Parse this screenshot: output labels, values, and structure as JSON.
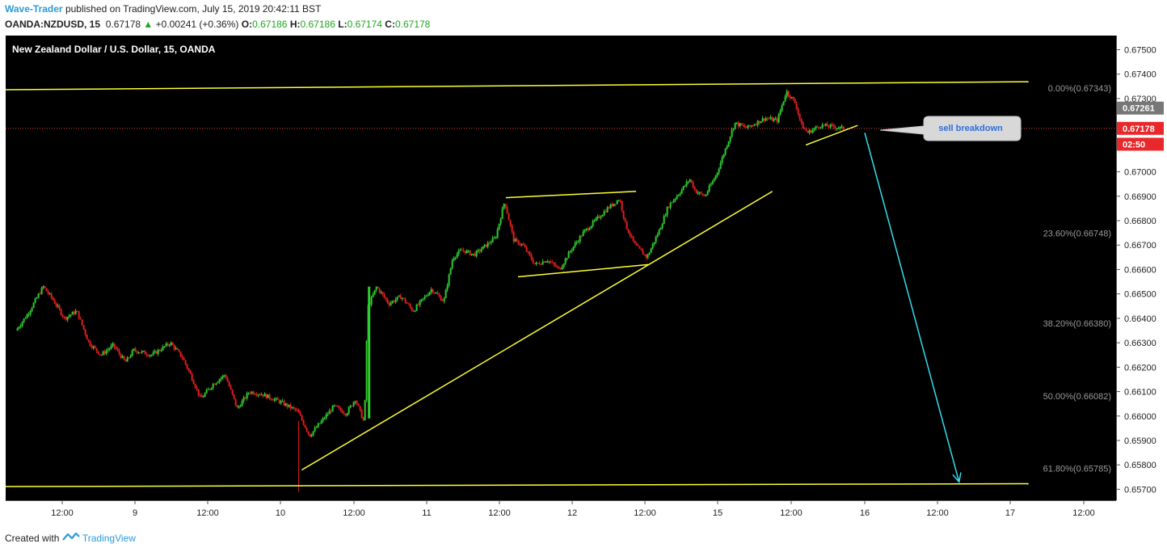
{
  "header": {
    "author": "Wave-Trader",
    "published_text": "published on TradingView.com, July 15, 2019 20:42:11 BST",
    "symbol": "OANDA:NZDUSD, 15",
    "last": "0.67178",
    "change_arrow": "▲",
    "change": "+0.00241 (+0.36%)",
    "open_label": "O:",
    "open": "0.67186",
    "high_label": "H:",
    "high": "0.67186",
    "low_label": "L:",
    "low": "0.67174",
    "close_label": "C:",
    "close": "0.67178"
  },
  "footer": {
    "created_with": "Created with",
    "brand": "TradingView"
  },
  "colors": {
    "up": "#2ecc2e",
    "down": "#e01e1e",
    "trendline": "#ffff33",
    "arrow": "#33ddee",
    "price_line": "#e84040"
  },
  "chart_data": {
    "type": "candlestick",
    "title": "New Zealand Dollar / U.S. Dollar, 15, OANDA",
    "ylim": [
      0.65655,
      0.67558
    ],
    "y_ticks": [
      "0.67500",
      "0.67400",
      "0.67300",
      "0.67000",
      "0.66900",
      "0.66800",
      "0.66700",
      "0.66600",
      "0.66500",
      "0.66400",
      "0.66300",
      "0.66200",
      "0.66100",
      "0.66000",
      "0.65900",
      "0.65800",
      "0.65700"
    ],
    "x_ticks": [
      "12:00",
      "9",
      "12:00",
      "10",
      "12:00",
      "11",
      "12:00",
      "12",
      "12:00",
      "15",
      "12:00",
      "16",
      "12:00",
      "17",
      "12:00"
    ],
    "price_labels": [
      {
        "text": "0.67261",
        "value": 0.67261,
        "style": "grey"
      },
      {
        "text": "0.67178",
        "value": 0.67178,
        "style": "red"
      },
      {
        "text": "02:50",
        "value": 0.67113,
        "style": "red"
      }
    ],
    "fib_levels": [
      {
        "label": "0.00%(0.67343)",
        "value": 0.67343
      },
      {
        "label": "23.60%(0.66748)",
        "value": 0.66748
      },
      {
        "label": "38.20%(0.66380)",
        "value": 0.6638
      },
      {
        "label": "50.00%(0.66082)",
        "value": 0.66082
      },
      {
        "label": "61.80%(0.65785)",
        "value": 0.65785
      }
    ],
    "price_path": [
      [
        "8 04:00",
        0.6635
      ],
      [
        "8 06:00",
        0.6642
      ],
      [
        "8 08:30",
        0.6653
      ],
      [
        "8 10:00",
        0.6648
      ],
      [
        "8 12:00",
        0.664
      ],
      [
        "8 14:00",
        0.6643
      ],
      [
        "8 16:00",
        0.663
      ],
      [
        "8 18:00",
        0.6625
      ],
      [
        "8 20:00",
        0.6629
      ],
      [
        "8 22:00",
        0.6622
      ],
      [
        "9 00:00",
        0.6627
      ],
      [
        "9 03:00",
        0.6625
      ],
      [
        "9 06:00",
        0.663
      ],
      [
        "9 08:00",
        0.6624
      ],
      [
        "9 09:30",
        0.6616
      ],
      [
        "9 11:00",
        0.6607
      ],
      [
        "9 13:00",
        0.6613
      ],
      [
        "9 15:00",
        0.6617
      ],
      [
        "9 17:00",
        0.6603
      ],
      [
        "9 19:00",
        0.661
      ],
      [
        "9 21:00",
        0.6609
      ],
      [
        "10 00:00",
        0.6606
      ],
      [
        "10 03:00",
        0.6602
      ],
      [
        "10 05:00",
        0.6592
      ],
      [
        "10 07:00",
        0.6598
      ],
      [
        "10 09:00",
        0.6604
      ],
      [
        "10 11:00",
        0.6601
      ],
      [
        "10 12:30",
        0.6607
      ],
      [
        "10 14:00",
        0.6597
      ],
      [
        "10 14:30",
        0.6644
      ],
      [
        "10 16:00",
        0.6653
      ],
      [
        "10 18:00",
        0.6646
      ],
      [
        "10 20:00",
        0.6649
      ],
      [
        "10 22:00",
        0.6643
      ],
      [
        "11 01:00",
        0.6652
      ],
      [
        "11 03:00",
        0.6647
      ],
      [
        "11 04:30",
        0.6665
      ],
      [
        "11 06:00",
        0.6668
      ],
      [
        "11 08:00",
        0.6666
      ],
      [
        "11 10:00",
        0.667
      ],
      [
        "11 11:30",
        0.6673
      ],
      [
        "11 13:00",
        0.6688
      ],
      [
        "11 14:30",
        0.6672
      ],
      [
        "11 16:00",
        0.667
      ],
      [
        "11 18:00",
        0.6662
      ],
      [
        "11 20:00",
        0.6664
      ],
      [
        "11 22:00",
        0.666
      ],
      [
        "12 00:00",
        0.6668
      ],
      [
        "12 02:00",
        0.6675
      ],
      [
        "12 04:00",
        0.668
      ],
      [
        "12 06:00",
        0.6685
      ],
      [
        "12 08:00",
        0.6689
      ],
      [
        "12 09:00",
        0.6678
      ],
      [
        "12 10:30",
        0.667
      ],
      [
        "12 12:30",
        0.6665
      ],
      [
        "12 14:30",
        0.6676
      ],
      [
        "12 16:00",
        0.6686
      ],
      [
        "12 18:00",
        0.6692
      ],
      [
        "12 19:30",
        0.6697
      ],
      [
        "12 20:30",
        0.6692
      ],
      [
        "12 22:00",
        0.669
      ],
      [
        "15 00:00",
        0.6699
      ],
      [
        "15 02:00",
        0.6713
      ],
      [
        "15 03:00",
        0.672
      ],
      [
        "15 05:00",
        0.6718
      ],
      [
        "15 08:00",
        0.6722
      ],
      [
        "15 10:00",
        0.6721
      ],
      [
        "15 11:30",
        0.6733
      ],
      [
        "15 13:00",
        0.6728
      ],
      [
        "15 14:00",
        0.6719
      ],
      [
        "15 15:00",
        0.6716
      ],
      [
        "15 17:00",
        0.6719
      ],
      [
        "15 19:00",
        0.67186
      ],
      [
        "15 20:42",
        0.67178
      ]
    ],
    "annotations": {
      "callout": "sell breakdown",
      "channel_top": [
        [
          "8 01:00",
          0.67336
        ],
        [
          "17 03:00",
          0.67369
        ]
      ],
      "channel_bottom": [
        [
          "8 01:00",
          0.65711
        ],
        [
          "17 03:00",
          0.65723
        ]
      ],
      "support_line": [
        [
          "10 03:30",
          0.65779
        ],
        [
          "15 09:00",
          0.6692
        ]
      ],
      "flag_top": [
        [
          "11 13:00",
          0.66894
        ],
        [
          "12 10:30",
          0.6692
        ]
      ],
      "flag_bottom": [
        [
          "11 15:00",
          0.6657
        ],
        [
          "12 12:30",
          0.6662
        ]
      ],
      "wedge_line": [
        [
          "15 14:30",
          0.6711
        ],
        [
          "15 23:00",
          0.6719
        ]
      ],
      "arrow": [
        [
          "16 00:00",
          0.6716
        ],
        [
          "16 15:30",
          0.6573
        ]
      ]
    }
  }
}
